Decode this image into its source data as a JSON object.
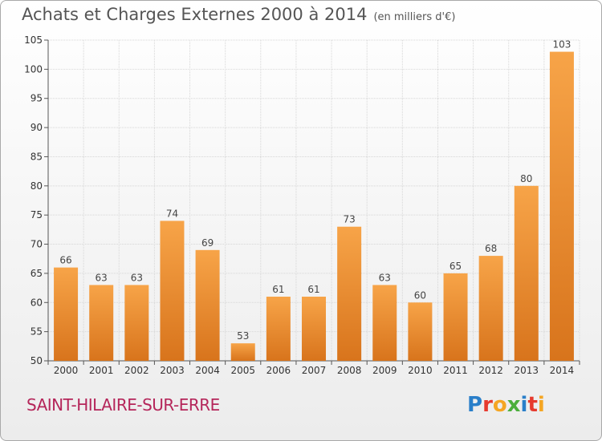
{
  "header": {
    "title": "Achats et Charges Externes 2000 à 2014",
    "unit": "(en milliers d'€)"
  },
  "footer": {
    "commune": "SAINT-HILAIRE-SUR-ERRE",
    "logo": "Proxiti"
  },
  "logo_letters": [
    {
      "ch": "P",
      "color": "#2a7fc9"
    },
    {
      "ch": "r",
      "color": "#e63a2e"
    },
    {
      "ch": "o",
      "color": "#f5a623"
    },
    {
      "ch": "x",
      "color": "#4cae3c"
    },
    {
      "ch": "i",
      "color": "#2a7fc9"
    },
    {
      "ch": "t",
      "color": "#e63a2e"
    },
    {
      "ch": "i",
      "color": "#f5a623"
    }
  ],
  "chart_data": {
    "type": "bar",
    "title": "Achats et Charges Externes 2000 à 2014",
    "subtitle": "(en milliers d'€)",
    "xlabel": "",
    "ylabel": "",
    "categories": [
      "2000",
      "2001",
      "2002",
      "2003",
      "2004",
      "2005",
      "2006",
      "2007",
      "2008",
      "2009",
      "2010",
      "2011",
      "2012",
      "2013",
      "2014"
    ],
    "values": [
      66,
      63,
      63,
      74,
      69,
      53,
      61,
      61,
      73,
      63,
      60,
      65,
      68,
      80,
      103
    ],
    "ylim": [
      50,
      105
    ],
    "yticks": [
      50,
      55,
      60,
      65,
      70,
      75,
      80,
      85,
      90,
      95,
      100,
      105
    ],
    "grid": true,
    "bar_color_top": "#f7a448",
    "bar_color_bottom": "#d8741c"
  }
}
